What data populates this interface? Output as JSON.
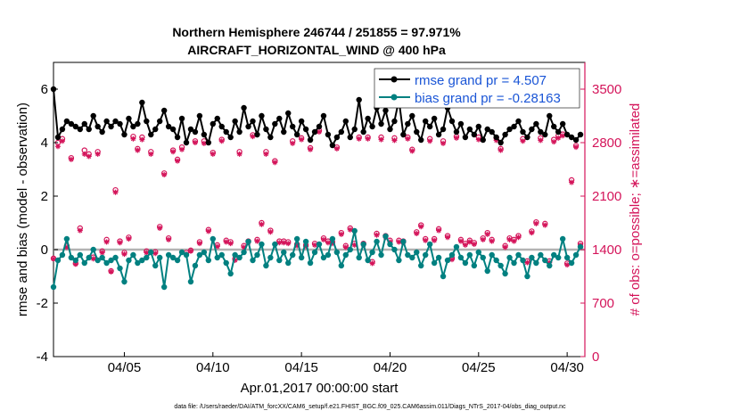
{
  "chart_data": {
    "type": "line",
    "title": "Northern Hemisphere 246744 / 251855 = 97.971%",
    "subtitle": "AIRCRAFT_HORIZONTAL_WIND @ 400 hPa",
    "xlabel": "Apr.01,2017 00:00:00 start",
    "ylabel": "rmse and bias (model - observation)",
    "y2label": "# of obs: o=possible; ∗=assimilated",
    "footer": "data file: /Users/raeder/DAI/ATM_forcXX/CAM6_setup/f.e21.FHIST_BGC.f09_025.CAM6assim.011/Diags_NTrS_2017-04/obs_diag_output.nc",
    "x_tick_labels": [
      "04/05",
      "04/10",
      "04/15",
      "04/20",
      "04/25",
      "04/30"
    ],
    "x_ticks_day": [
      5,
      10,
      15,
      20,
      25,
      30
    ],
    "xlim": [
      1,
      31
    ],
    "ylim": [
      -4,
      7
    ],
    "y_ticks": [
      -4,
      -2,
      0,
      2,
      4,
      6
    ],
    "y2lim": [
      0,
      3850
    ],
    "y2_ticks": [
      0,
      700,
      1400,
      2100,
      2800,
      3500
    ],
    "colors": {
      "rmse": "#000000",
      "bias": "#008080",
      "obs": "#d4145a",
      "legend_text": "#1a55d6",
      "zero_line": "#b3b3b3"
    },
    "legend": [
      {
        "name": "rmse grand pr = 4.507",
        "series": "rmse"
      },
      {
        "name": "bias grand pr = -0.28163",
        "series": "bias"
      }
    ],
    "x": [
      1.0,
      1.25,
      1.5,
      1.75,
      2.0,
      2.25,
      2.5,
      2.75,
      3.0,
      3.25,
      3.5,
      3.75,
      4.0,
      4.25,
      4.5,
      4.75,
      5.0,
      5.25,
      5.5,
      5.75,
      6.0,
      6.25,
      6.5,
      6.75,
      7.0,
      7.25,
      7.5,
      7.75,
      8.0,
      8.25,
      8.5,
      8.75,
      9.0,
      9.25,
      9.5,
      9.75,
      10.0,
      10.25,
      10.5,
      10.75,
      11.0,
      11.25,
      11.5,
      11.75,
      12.0,
      12.25,
      12.5,
      12.75,
      13.0,
      13.25,
      13.5,
      13.75,
      14.0,
      14.25,
      14.5,
      14.75,
      15.0,
      15.25,
      15.5,
      15.75,
      16.0,
      16.25,
      16.5,
      16.75,
      17.0,
      17.25,
      17.5,
      17.75,
      18.0,
      18.25,
      18.5,
      18.75,
      19.0,
      19.25,
      19.5,
      19.75,
      20.0,
      20.25,
      20.5,
      20.75,
      21.0,
      21.25,
      21.5,
      21.75,
      22.0,
      22.25,
      22.5,
      22.75,
      23.0,
      23.25,
      23.5,
      23.75,
      24.0,
      24.25,
      24.5,
      24.75,
      25.0,
      25.25,
      25.5,
      25.75,
      26.0,
      26.25,
      26.5,
      26.75,
      27.0,
      27.25,
      27.5,
      27.75,
      28.0,
      28.25,
      28.5,
      28.75,
      29.0,
      29.25,
      29.5,
      29.75,
      30.0,
      30.25,
      30.5,
      30.75
    ],
    "rmse": [
      6.0,
      4.2,
      4.5,
      4.8,
      4.7,
      4.6,
      4.5,
      4.7,
      4.5,
      5.0,
      4.6,
      4.4,
      4.8,
      4.6,
      4.8,
      4.7,
      4.3,
      4.9,
      4.6,
      4.7,
      5.5,
      4.8,
      4.3,
      4.5,
      4.8,
      5.2,
      4.6,
      4.5,
      4.2,
      4.9,
      4.0,
      4.5,
      4.4,
      5.0,
      4.3,
      4.0,
      4.7,
      4.9,
      4.6,
      4.4,
      4.2,
      4.8,
      4.4,
      5.3,
      4.6,
      4.8,
      4.3,
      5.0,
      4.5,
      4.2,
      4.7,
      4.9,
      4.4,
      5.1,
      4.6,
      4.3,
      4.8,
      4.5,
      4.1,
      4.4,
      4.6,
      5.0,
      4.3,
      3.9,
      4.2,
      4.4,
      4.8,
      4.2,
      4.5,
      5.6,
      4.4,
      4.9,
      4.6,
      5.3,
      4.7,
      5.2,
      4.5,
      4.8,
      5.6,
      4.3,
      4.7,
      5.0,
      4.4,
      4.1,
      4.8,
      4.6,
      4.9,
      4.3,
      4.5,
      5.3,
      4.8,
      4.4,
      4.7,
      4.2,
      4.5,
      4.3,
      4.6,
      4.1,
      4.5,
      4.4,
      4.2,
      4.0,
      4.3,
      4.5,
      4.6,
      4.8,
      4.4,
      4.2,
      4.5,
      4.7,
      4.4,
      4.3,
      5.0,
      4.6,
      4.4,
      4.7,
      4.3,
      4.2,
      4.1,
      4.3
    ],
    "bias": [
      -1.4,
      -0.4,
      -0.2,
      0.4,
      -0.3,
      -0.4,
      -0.2,
      -0.5,
      -0.3,
      0.0,
      -0.4,
      -0.3,
      -0.5,
      -0.4,
      -0.3,
      -0.7,
      -1.2,
      -0.4,
      -0.2,
      -0.5,
      -0.4,
      -0.3,
      -0.1,
      -0.6,
      -0.3,
      -1.4,
      -0.2,
      -0.3,
      -0.4,
      -0.1,
      -0.2,
      -1.2,
      -0.6,
      -0.2,
      -0.1,
      -0.4,
      0.4,
      -0.3,
      -0.2,
      -0.5,
      -0.9,
      -0.2,
      -0.3,
      -0.1,
      0.3,
      -0.4,
      -0.2,
      0.2,
      -0.6,
      -0.3,
      0.2,
      -0.4,
      -0.1,
      -0.5,
      -0.2,
      0.4,
      -0.3,
      0.3,
      -0.5,
      -0.1,
      0.2,
      -0.3,
      -0.2,
      0.4,
      -0.1,
      -0.6,
      -0.2,
      0.0,
      0.7,
      -0.3,
      0.2,
      -0.4,
      -0.1,
      0.3,
      -0.2,
      0.5,
      0.2,
      0.0,
      -0.4,
      0.3,
      -0.2,
      -0.3,
      -0.1,
      -0.6,
      -0.2,
      0.2,
      -0.5,
      -0.3,
      -1.0,
      -0.4,
      -0.2,
      0.1,
      -0.3,
      -0.5,
      -0.2,
      -0.6,
      -0.1,
      -0.3,
      -0.8,
      -0.2,
      -0.4,
      -0.6,
      -0.9,
      -0.3,
      -0.5,
      -0.2,
      -0.4,
      -1.0,
      -0.3,
      -0.5,
      -0.2,
      -0.4,
      -0.6,
      -0.2,
      -0.3,
      0.4,
      -0.3,
      -0.5,
      -0.2,
      0.1
    ],
    "obs_possible": [
      1285,
      2800,
      2850,
      1450,
      2600,
      1220,
      1680,
      2700,
      2650,
      1300,
      2680,
      1380,
      1530,
      1120,
      2180,
      1510,
      1360,
      1560,
      2880,
      2720,
      2870,
      1380,
      2680,
      1370,
      1700,
      2400,
      1550,
      2700,
      2580,
      2740,
      1360,
      1390,
      2820,
      1500,
      2820,
      1660,
      2670,
      1460,
      2840,
      1520,
      1500,
      1280,
      2680,
      1450,
      1510,
      2900,
      1530,
      1750,
      2680,
      1650,
      2560,
      1510,
      1510,
      1500,
      2820,
      1470,
      2860,
      1460,
      2730,
      1480,
      2960,
      1550,
      1510,
      1500,
      2740,
      1620,
      1450,
      1680,
      1480,
      2870,
      1480,
      2870,
      1240,
      1610,
      2870,
      1580,
      1520,
      2860,
      1520,
      1510,
      2870,
      2710,
      1630,
      1720,
      1540,
      2850,
      1540,
      1670,
      2820,
      1580,
      1290,
      2880,
      1530,
      1480,
      1520,
      1490,
      2870,
      1550,
      1620,
      1530,
      2860,
      2720,
      1450,
      1550,
      1530,
      1580,
      2850,
      1250,
      1640,
      1760,
      2860,
      1740,
      1250,
      2840,
      2890,
      2910,
      1220,
      2310,
      2760,
      1480
    ],
    "obs_assimilated": [
      1280,
      2750,
      2820,
      1430,
      2580,
      1210,
      1650,
      2650,
      2620,
      1280,
      2650,
      1360,
      1500,
      1110,
      2150,
      1490,
      1340,
      1540,
      2850,
      2700,
      2840,
      1360,
      2650,
      1350,
      1680,
      2380,
      1530,
      2680,
      2560,
      2710,
      1340,
      1380,
      2800,
      1480,
      2790,
      1640,
      2650,
      1440,
      2820,
      1500,
      1480,
      1260,
      2650,
      1430,
      1490,
      2880,
      1510,
      1730,
      2650,
      1630,
      2540,
      1490,
      1490,
      1480,
      2790,
      1450,
      2840,
      1440,
      2710,
      1460,
      2940,
      1530,
      1490,
      1480,
      2720,
      1600,
      1430,
      1660,
      1460,
      2850,
      1460,
      2850,
      1220,
      1590,
      2840,
      1560,
      1500,
      2830,
      1500,
      1490,
      2850,
      2690,
      1610,
      1700,
      1520,
      2820,
      1520,
      1650,
      2790,
      1560,
      1270,
      2860,
      1510,
      1460,
      1500,
      1470,
      2840,
      1530,
      1600,
      1510,
      2830,
      2700,
      1430,
      1530,
      1510,
      1560,
      2820,
      1230,
      1620,
      1740,
      2830,
      1720,
      1230,
      2810,
      2860,
      2890,
      1200,
      2280,
      2740,
      1460
    ]
  }
}
